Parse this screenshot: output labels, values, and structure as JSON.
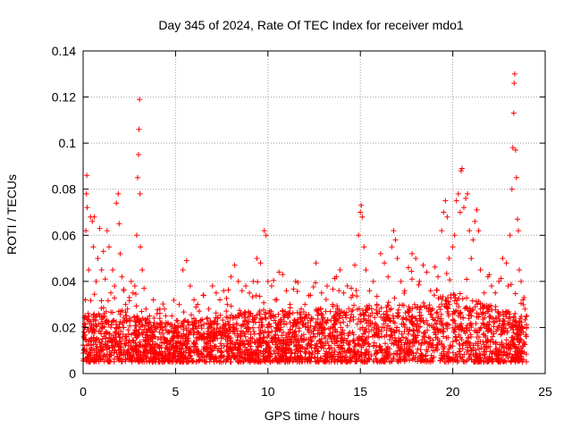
{
  "chart_data": {
    "type": "scatter",
    "title": "Day 345 of 2024, Rate Of TEC Index for receiver mdo1",
    "xlabel": "GPS time / hours",
    "ylabel": "ROTI / TECUs",
    "xlim": [
      0,
      25
    ],
    "ylim": [
      0,
      0.14
    ],
    "xticks": [
      0,
      5,
      10,
      15,
      20,
      25
    ],
    "yticks": [
      0,
      0.02,
      0.04,
      0.06,
      0.08,
      0.1,
      0.12,
      0.14
    ],
    "xtick_labels": [
      "0",
      "5",
      "10",
      "15",
      "20",
      "25"
    ],
    "ytick_labels": [
      "0",
      "0.02",
      "0.04",
      "0.06",
      "0.08",
      "0.1",
      "0.12",
      "0.14"
    ],
    "grid": true,
    "marker": "+",
    "series_color": "#ff0000",
    "series": [
      {
        "name": "mdo1",
        "points": [
          [
            0.05,
            0.018
          ],
          [
            0.1,
            0.025
          ],
          [
            0.12,
            0.032
          ],
          [
            0.15,
            0.062
          ],
          [
            0.18,
            0.078
          ],
          [
            0.2,
            0.086
          ],
          [
            0.22,
            0.072
          ],
          [
            0.3,
            0.045
          ],
          [
            0.4,
            0.068
          ],
          [
            0.5,
            0.066
          ],
          [
            0.55,
            0.055
          ],
          [
            0.6,
            0.068
          ],
          [
            0.7,
            0.04
          ],
          [
            0.8,
            0.05
          ],
          [
            0.9,
            0.063
          ],
          [
            1.0,
            0.045
          ],
          [
            1.1,
            0.053
          ],
          [
            1.2,
            0.041
          ],
          [
            1.3,
            0.062
          ],
          [
            1.4,
            0.055
          ],
          [
            1.5,
            0.035
          ],
          [
            1.6,
            0.045
          ],
          [
            1.7,
            0.038
          ],
          [
            1.8,
            0.074
          ],
          [
            1.9,
            0.078
          ],
          [
            1.95,
            0.065
          ],
          [
            2.0,
            0.052
          ],
          [
            2.1,
            0.042
          ],
          [
            2.2,
            0.036
          ],
          [
            2.3,
            0.03
          ],
          [
            2.4,
            0.028
          ],
          [
            2.5,
            0.033
          ],
          [
            2.6,
            0.04
          ],
          [
            2.7,
            0.035
          ],
          [
            2.8,
            0.038
          ],
          [
            2.9,
            0.06
          ],
          [
            2.95,
            0.085
          ],
          [
            3.0,
            0.095
          ],
          [
            3.02,
            0.106
          ],
          [
            3.05,
            0.119
          ],
          [
            3.08,
            0.078
          ],
          [
            3.1,
            0.055
          ],
          [
            3.2,
            0.045
          ],
          [
            3.3,
            0.037
          ],
          [
            3.4,
            0.028
          ],
          [
            3.5,
            0.024
          ],
          [
            3.6,
            0.025
          ],
          [
            3.8,
            0.032
          ],
          [
            4.0,
            0.026
          ],
          [
            4.2,
            0.022
          ],
          [
            4.4,
            0.028
          ],
          [
            4.6,
            0.022
          ],
          [
            4.8,
            0.025
          ],
          [
            5.0,
            0.02
          ],
          [
            5.2,
            0.03
          ],
          [
            5.4,
            0.045
          ],
          [
            5.6,
            0.049
          ],
          [
            5.8,
            0.038
          ],
          [
            6.0,
            0.032
          ],
          [
            6.2,
            0.03
          ],
          [
            6.5,
            0.034
          ],
          [
            6.8,
            0.028
          ],
          [
            7.0,
            0.038
          ],
          [
            7.2,
            0.035
          ],
          [
            7.4,
            0.032
          ],
          [
            7.6,
            0.036
          ],
          [
            7.8,
            0.03
          ],
          [
            8.0,
            0.042
          ],
          [
            8.2,
            0.047
          ],
          [
            8.4,
            0.04
          ],
          [
            8.6,
            0.036
          ],
          [
            8.8,
            0.038
          ],
          [
            9.0,
            0.035
          ],
          [
            9.2,
            0.04
          ],
          [
            9.4,
            0.05
          ],
          [
            9.6,
            0.048
          ],
          [
            9.8,
            0.062
          ],
          [
            9.9,
            0.06
          ],
          [
            10.0,
            0.04
          ],
          [
            10.2,
            0.038
          ],
          [
            10.4,
            0.032
          ],
          [
            10.6,
            0.044
          ],
          [
            10.8,
            0.043
          ],
          [
            11.0,
            0.036
          ],
          [
            11.2,
            0.03
          ],
          [
            11.5,
            0.04
          ],
          [
            11.8,
            0.028
          ],
          [
            12.0,
            0.03
          ],
          [
            12.3,
            0.034
          ],
          [
            12.6,
            0.048
          ],
          [
            12.9,
            0.035
          ],
          [
            13.2,
            0.038
          ],
          [
            13.5,
            0.03
          ],
          [
            13.7,
            0.042
          ],
          [
            13.9,
            0.045
          ],
          [
            14.1,
            0.035
          ],
          [
            14.3,
            0.038
          ],
          [
            14.5,
            0.033
          ],
          [
            14.7,
            0.047
          ],
          [
            14.9,
            0.06
          ],
          [
            15.0,
            0.07
          ],
          [
            15.05,
            0.073
          ],
          [
            15.1,
            0.068
          ],
          [
            15.2,
            0.055
          ],
          [
            15.3,
            0.045
          ],
          [
            15.5,
            0.036
          ],
          [
            15.7,
            0.04
          ],
          [
            15.9,
            0.03
          ],
          [
            16.1,
            0.052
          ],
          [
            16.3,
            0.048
          ],
          [
            16.5,
            0.042
          ],
          [
            16.7,
            0.055
          ],
          [
            16.8,
            0.062
          ],
          [
            16.9,
            0.058
          ],
          [
            17.0,
            0.05
          ],
          [
            17.2,
            0.04
          ],
          [
            17.4,
            0.036
          ],
          [
            17.6,
            0.046
          ],
          [
            17.8,
            0.052
          ],
          [
            18.0,
            0.05
          ],
          [
            18.2,
            0.04
          ],
          [
            18.4,
            0.047
          ],
          [
            18.6,
            0.044
          ],
          [
            18.8,
            0.036
          ],
          [
            19.0,
            0.034
          ],
          [
            19.2,
            0.042
          ],
          [
            19.4,
            0.062
          ],
          [
            19.5,
            0.07
          ],
          [
            19.6,
            0.075
          ],
          [
            19.7,
            0.068
          ],
          [
            19.8,
            0.05
          ],
          [
            20.0,
            0.055
          ],
          [
            20.1,
            0.06
          ],
          [
            20.2,
            0.075
          ],
          [
            20.3,
            0.078
          ],
          [
            20.4,
            0.07
          ],
          [
            20.45,
            0.088
          ],
          [
            20.5,
            0.089
          ],
          [
            20.6,
            0.072
          ],
          [
            20.7,
            0.076
          ],
          [
            20.8,
            0.078
          ],
          [
            20.9,
            0.062
          ],
          [
            21.0,
            0.05
          ],
          [
            21.1,
            0.058
          ],
          [
            21.2,
            0.066
          ],
          [
            21.3,
            0.071
          ],
          [
            21.4,
            0.062
          ],
          [
            21.5,
            0.045
          ],
          [
            21.7,
            0.035
          ],
          [
            21.9,
            0.042
          ],
          [
            22.1,
            0.038
          ],
          [
            22.3,
            0.035
          ],
          [
            22.5,
            0.04
          ],
          [
            22.7,
            0.05
          ],
          [
            22.9,
            0.048
          ],
          [
            23.0,
            0.038
          ],
          [
            23.1,
            0.06
          ],
          [
            23.2,
            0.08
          ],
          [
            23.25,
            0.098
          ],
          [
            23.3,
            0.113
          ],
          [
            23.32,
            0.126
          ],
          [
            23.35,
            0.13
          ],
          [
            23.4,
            0.097
          ],
          [
            23.45,
            0.085
          ],
          [
            23.5,
            0.067
          ],
          [
            23.55,
            0.062
          ],
          [
            23.6,
            0.045
          ],
          [
            23.7,
            0.04
          ],
          [
            23.8,
            0.032
          ],
          [
            23.9,
            0.028
          ],
          [
            24.0,
            0.025
          ]
        ],
        "band": {
          "floor": 0.005,
          "x_range": [
            0,
            24
          ],
          "typical_upper": [
            [
              0,
              0.025
            ],
            [
              2,
              0.028
            ],
            [
              4,
              0.022
            ],
            [
              6,
              0.024
            ],
            [
              8,
              0.026
            ],
            [
              10,
              0.028
            ],
            [
              12,
              0.027
            ],
            [
              14,
              0.03
            ],
            [
              16,
              0.03
            ],
            [
              18,
              0.03
            ],
            [
              20,
              0.035
            ],
            [
              22,
              0.03
            ],
            [
              24,
              0.025
            ]
          ]
        }
      }
    ]
  }
}
